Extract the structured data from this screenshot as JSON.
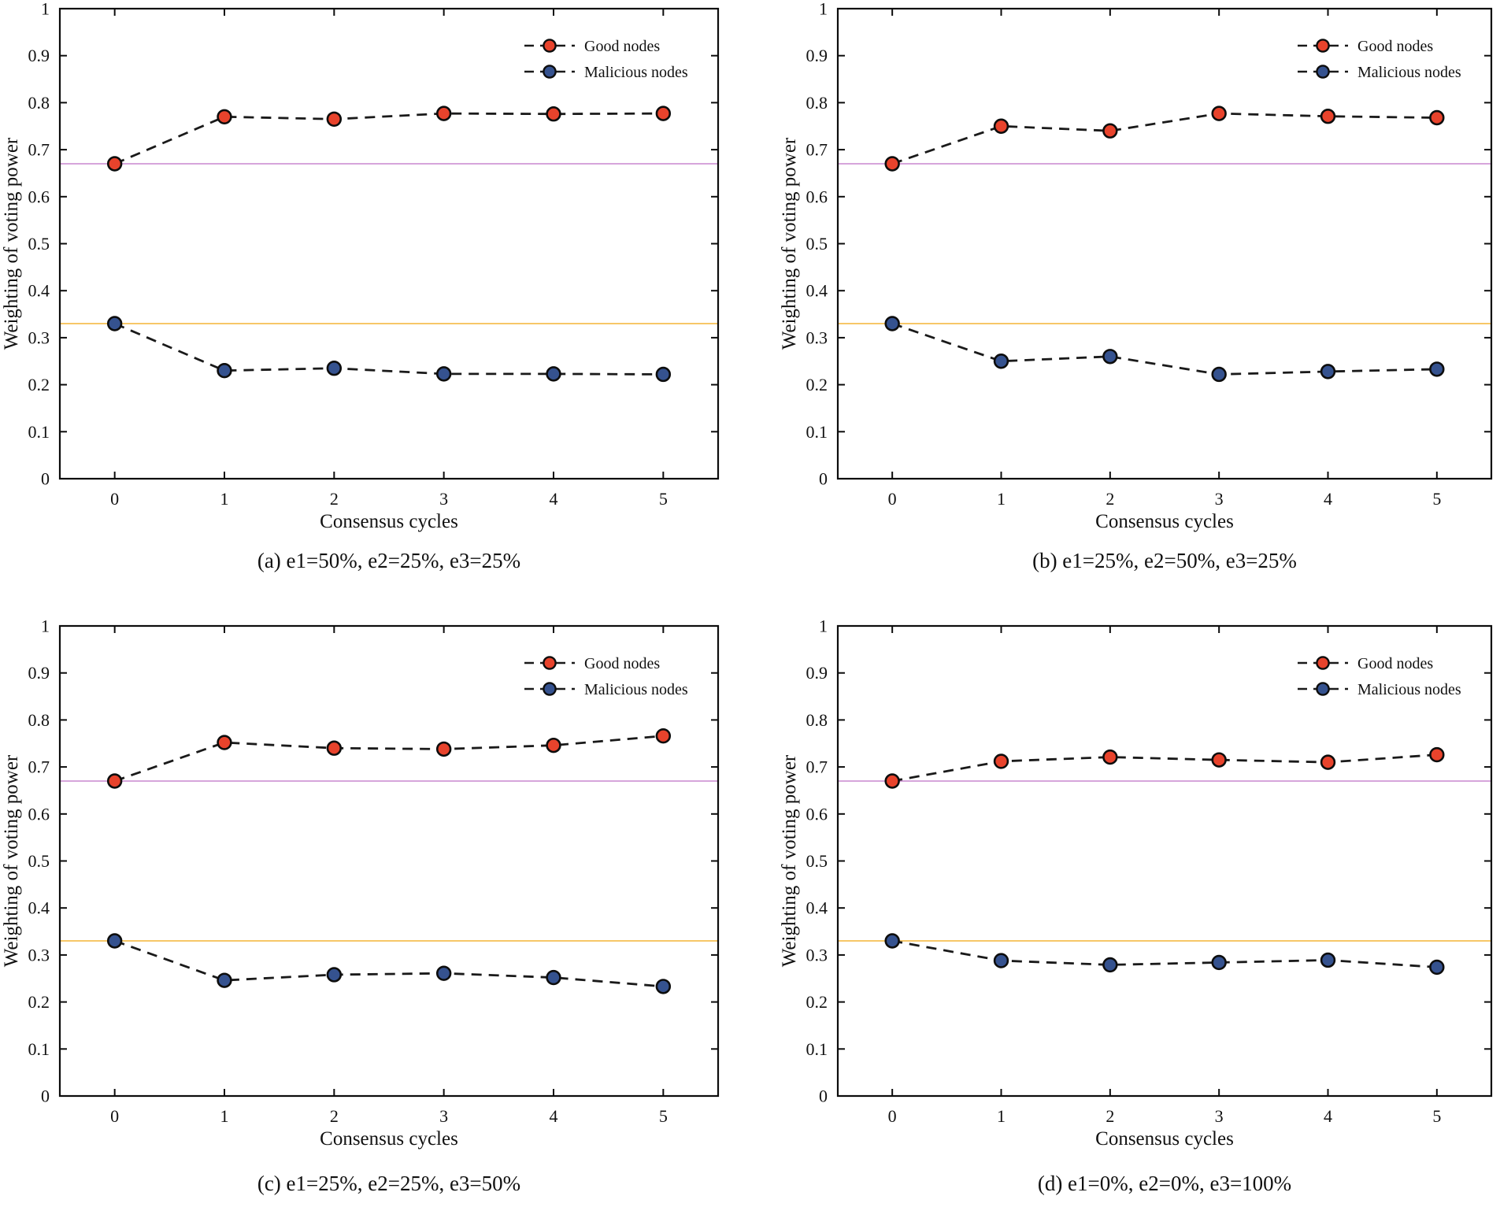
{
  "figure": {
    "background": "#ffffff",
    "ylabel": "Weighting of voting power",
    "xlabel": "Consensus cycles"
  },
  "style": {
    "frame_color": "#0c0c0c",
    "dash_line_color": "#1a1a1a",
    "good_node_color": "#e8432c",
    "malicious_node_color": "#35528f",
    "ref_line_purple": "#c987cf",
    "ref_line_orange": "#f7c768"
  },
  "chart_data": [
    {
      "id": "a",
      "type": "line",
      "caption": "(a) e1=50%, e2=25%, e3=25%",
      "xlabel": "Consensus cycles",
      "ylabel": "Weighting of voting power",
      "x": [
        0,
        1,
        2,
        3,
        4,
        5
      ],
      "xtick_labels": [
        "0",
        "1",
        "2",
        "3",
        "4",
        "5"
      ],
      "ytick_labels": [
        "0",
        "0.1",
        "0.2",
        "0.3",
        "0.4",
        "0.5",
        "0.6",
        "0.7",
        "0.8",
        "0.9",
        "1"
      ],
      "xlim": [
        -0.5,
        5.5
      ],
      "ylim": [
        0,
        1
      ],
      "grid": false,
      "line_style": "dashed",
      "legend_position": "top-right",
      "series": [
        {
          "name": "Good nodes",
          "color": "#e8432c",
          "marker": "circle",
          "values": [
            0.67,
            0.77,
            0.765,
            0.777,
            0.776,
            0.777
          ]
        },
        {
          "name": "Malicious nodes",
          "color": "#35528f",
          "marker": "circle",
          "values": [
            0.33,
            0.23,
            0.235,
            0.223,
            0.223,
            0.222
          ]
        }
      ],
      "reference_lines": [
        {
          "y": 0.67,
          "color": "#c987cf"
        },
        {
          "y": 0.33,
          "color": "#f7c768"
        }
      ]
    },
    {
      "id": "b",
      "type": "line",
      "caption": "(b) e1=25%, e2=50%, e3=25%",
      "xlabel": "Consensus cycles",
      "ylabel": "Weighting of voting power",
      "x": [
        0,
        1,
        2,
        3,
        4,
        5
      ],
      "xtick_labels": [
        "0",
        "1",
        "2",
        "3",
        "4",
        "5"
      ],
      "ytick_labels": [
        "0",
        "0.1",
        "0.2",
        "0.3",
        "0.4",
        "0.5",
        "0.6",
        "0.7",
        "0.8",
        "0.9",
        "1"
      ],
      "xlim": [
        -0.5,
        5.5
      ],
      "ylim": [
        0,
        1
      ],
      "grid": false,
      "line_style": "dashed",
      "legend_position": "top-right",
      "series": [
        {
          "name": "Good nodes",
          "color": "#e8432c",
          "marker": "circle",
          "values": [
            0.67,
            0.75,
            0.74,
            0.777,
            0.771,
            0.768
          ]
        },
        {
          "name": "Malicious nodes",
          "color": "#35528f",
          "marker": "circle",
          "values": [
            0.33,
            0.25,
            0.26,
            0.222,
            0.228,
            0.233
          ]
        }
      ],
      "reference_lines": [
        {
          "y": 0.67,
          "color": "#c987cf"
        },
        {
          "y": 0.33,
          "color": "#f7c768"
        }
      ]
    },
    {
      "id": "c",
      "type": "line",
      "caption": "(c) e1=25%, e2=25%, e3=50%",
      "xlabel": "Consensus cycles",
      "ylabel": "Weighting of voting power",
      "x": [
        0,
        1,
        2,
        3,
        4,
        5
      ],
      "xtick_labels": [
        "0",
        "1",
        "2",
        "3",
        "4",
        "5"
      ],
      "ytick_labels": [
        "0",
        "0.1",
        "0.2",
        "0.3",
        "0.4",
        "0.5",
        "0.6",
        "0.7",
        "0.8",
        "0.9",
        "1"
      ],
      "xlim": [
        -0.5,
        5.5
      ],
      "ylim": [
        0,
        1
      ],
      "grid": false,
      "line_style": "dashed",
      "legend_position": "top-right",
      "series": [
        {
          "name": "Good nodes",
          "color": "#e8432c",
          "marker": "circle",
          "values": [
            0.67,
            0.752,
            0.74,
            0.738,
            0.746,
            0.766
          ]
        },
        {
          "name": "Malicious nodes",
          "color": "#35528f",
          "marker": "circle",
          "values": [
            0.33,
            0.246,
            0.258,
            0.261,
            0.252,
            0.233
          ]
        }
      ],
      "reference_lines": [
        {
          "y": 0.67,
          "color": "#c987cf"
        },
        {
          "y": 0.33,
          "color": "#f7c768"
        }
      ]
    },
    {
      "id": "d",
      "type": "line",
      "caption": "(d) e1=0%, e2=0%, e3=100%",
      "xlabel": "Consensus cycles",
      "ylabel": "Weighting of voting power",
      "x": [
        0,
        1,
        2,
        3,
        4,
        5
      ],
      "xtick_labels": [
        "0",
        "1",
        "2",
        "3",
        "4",
        "5"
      ],
      "ytick_labels": [
        "0",
        "0.1",
        "0.2",
        "0.3",
        "0.4",
        "0.5",
        "0.6",
        "0.7",
        "0.8",
        "0.9",
        "1"
      ],
      "xlim": [
        -0.5,
        5.5
      ],
      "ylim": [
        0,
        1
      ],
      "grid": false,
      "line_style": "dashed",
      "legend_position": "top-right",
      "series": [
        {
          "name": "Good nodes",
          "color": "#e8432c",
          "marker": "circle",
          "values": [
            0.67,
            0.712,
            0.721,
            0.715,
            0.71,
            0.726
          ]
        },
        {
          "name": "Malicious nodes",
          "color": "#35528f",
          "marker": "circle",
          "values": [
            0.33,
            0.288,
            0.279,
            0.284,
            0.289,
            0.274
          ]
        }
      ],
      "reference_lines": [
        {
          "y": 0.67,
          "color": "#c987cf"
        },
        {
          "y": 0.33,
          "color": "#f7c768"
        }
      ]
    }
  ]
}
